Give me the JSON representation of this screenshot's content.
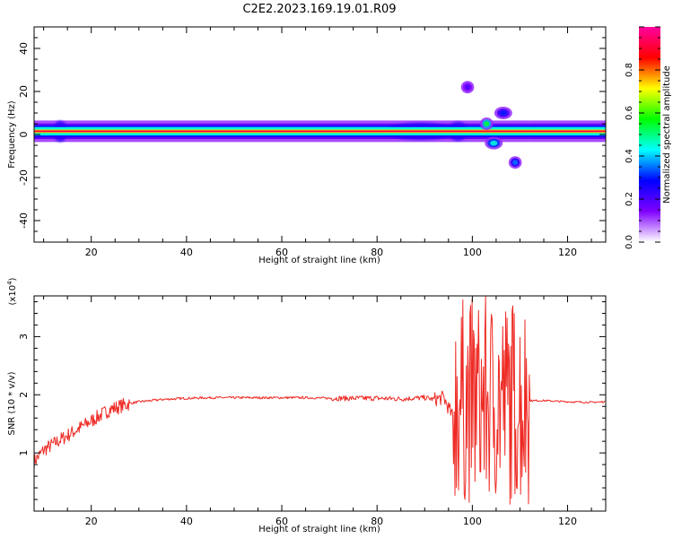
{
  "figure_title": "C2E2.2023.169.19.01.R09",
  "chart_data": [
    {
      "type": "heatmap",
      "title": "",
      "xlabel": "Height of straight line (km)",
      "ylabel": "Frequency (Hz)",
      "xlim": [
        8,
        128
      ],
      "ylim": [
        -50,
        50
      ],
      "xticks": [
        20,
        40,
        60,
        80,
        100,
        120
      ],
      "yticks": [
        -40,
        -20,
        0,
        20,
        40
      ],
      "grid": false,
      "colorbar": {
        "label": "Normalized spectral amplitude",
        "ticks": [
          0.0,
          0.2,
          0.4,
          0.6,
          0.8
        ],
        "range": [
          0,
          1
        ],
        "colors": [
          "#ffffff",
          "#8000ff",
          "#0000ff",
          "#00ffff",
          "#00ff00",
          "#ffff00",
          "#ff0000",
          "#ff00a0"
        ]
      },
      "features": [
        {
          "x_range": [
            8,
            112
          ],
          "freq_center": 1.5,
          "freq_halfwidth": 1.5,
          "amplitude": 0.85
        },
        {
          "x_range": [
            112,
            128
          ],
          "freq_center": 1.5,
          "freq_halfwidth": 1.5,
          "amplitude": 0.85
        },
        {
          "x_range": [
            98,
            100
          ],
          "freq_center": 22,
          "amplitude": 0.2
        },
        {
          "x_range": [
            102,
            104
          ],
          "freq_center": 5,
          "amplitude": 0.55
        },
        {
          "x_range": [
            103,
            106
          ],
          "freq_center": -4,
          "amplitude": 0.45
        },
        {
          "x_range": [
            105,
            108
          ],
          "freq_center": 10,
          "amplitude": 0.3
        },
        {
          "x_range": [
            108,
            110
          ],
          "freq_center": -13,
          "amplitude": 0.35
        }
      ]
    },
    {
      "type": "line",
      "title": "",
      "xlabel": "Height of straight line (km)",
      "ylabel": "SNR (10 * v/v)",
      "y_multiplier": "(x10",
      "y_multiplier_exp": "4",
      "y_multiplier_close": ")",
      "xlim": [
        8,
        128
      ],
      "ylim": [
        0,
        3.7
      ],
      "xticks": [
        20,
        40,
        60,
        80,
        100,
        120
      ],
      "yticks": [
        1,
        2,
        3
      ],
      "grid": false,
      "series": [
        {
          "color": "#ee2a24",
          "x": [
            8,
            10,
            12,
            14,
            16,
            18,
            20,
            22,
            24,
            26,
            28,
            30,
            35,
            40,
            45,
            50,
            55,
            60,
            65,
            70,
            75,
            80,
            85,
            90,
            92,
            94,
            96,
            98,
            100,
            102,
            104,
            106,
            108,
            110,
            112,
            115,
            120,
            125,
            128
          ],
          "y": [
            0.85,
            1.05,
            1.15,
            1.25,
            1.35,
            1.45,
            1.55,
            1.65,
            1.75,
            1.8,
            1.85,
            1.88,
            1.92,
            1.94,
            1.95,
            1.95,
            1.95,
            1.95,
            1.95,
            1.94,
            1.94,
            1.94,
            1.93,
            1.95,
            1.92,
            1.95,
            1.6,
            2.3,
            0.6,
            3.5,
            0.5,
            2.9,
            0.4,
            3.2,
            1.9,
            1.9,
            1.88,
            1.87,
            1.88
          ]
        }
      ]
    }
  ]
}
